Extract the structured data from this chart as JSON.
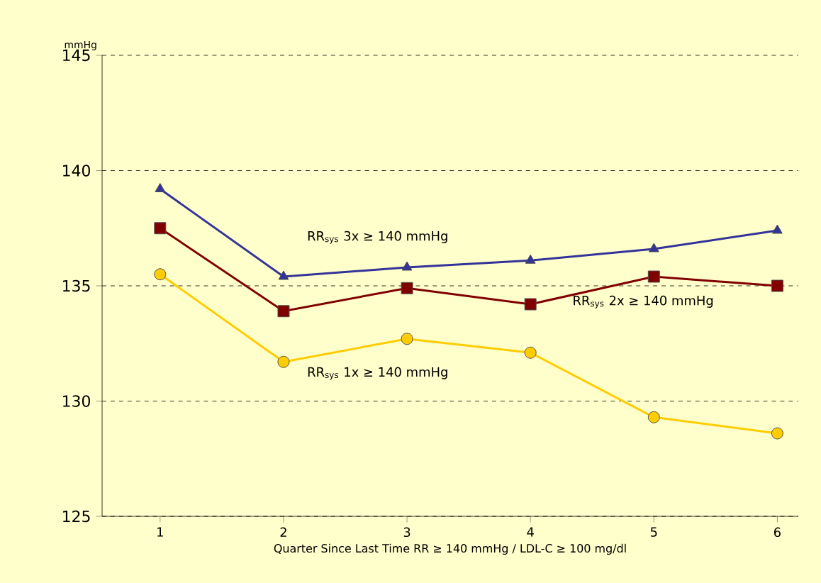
{
  "chart_data": {
    "type": "line",
    "ylabel": "mmHg",
    "xlabel": "Quarter Since Last Time RR ≥ 140 mmHg / LDL-C ≥ 100 mg/dl",
    "categories": [
      "1",
      "2",
      "3",
      "4",
      "5",
      "6"
    ],
    "ylim": [
      125,
      145
    ],
    "yticks": [
      125,
      130,
      135,
      140,
      145
    ],
    "grid": "y",
    "series": [
      {
        "name": "RR$_{sys}$ 3x ≥ 140 mmHg",
        "color": "#333399",
        "marker": "triangle",
        "values": [
          139.2,
          135.4,
          135.8,
          136.1,
          136.6,
          137.4
        ]
      },
      {
        "name": "RR$_{sys}$ 2x ≥ 140 mmHg",
        "color": "#800000",
        "marker": "square",
        "values": [
          137.5,
          133.9,
          134.9,
          134.2,
          135.4,
          135.0
        ]
      },
      {
        "name": "RR$_{sys}$ 1x ≥ 140 mmHg",
        "color": "#ffcc00",
        "marker": "circle",
        "values": [
          135.5,
          131.7,
          132.7,
          132.1,
          129.3,
          128.6
        ]
      }
    ]
  }
}
